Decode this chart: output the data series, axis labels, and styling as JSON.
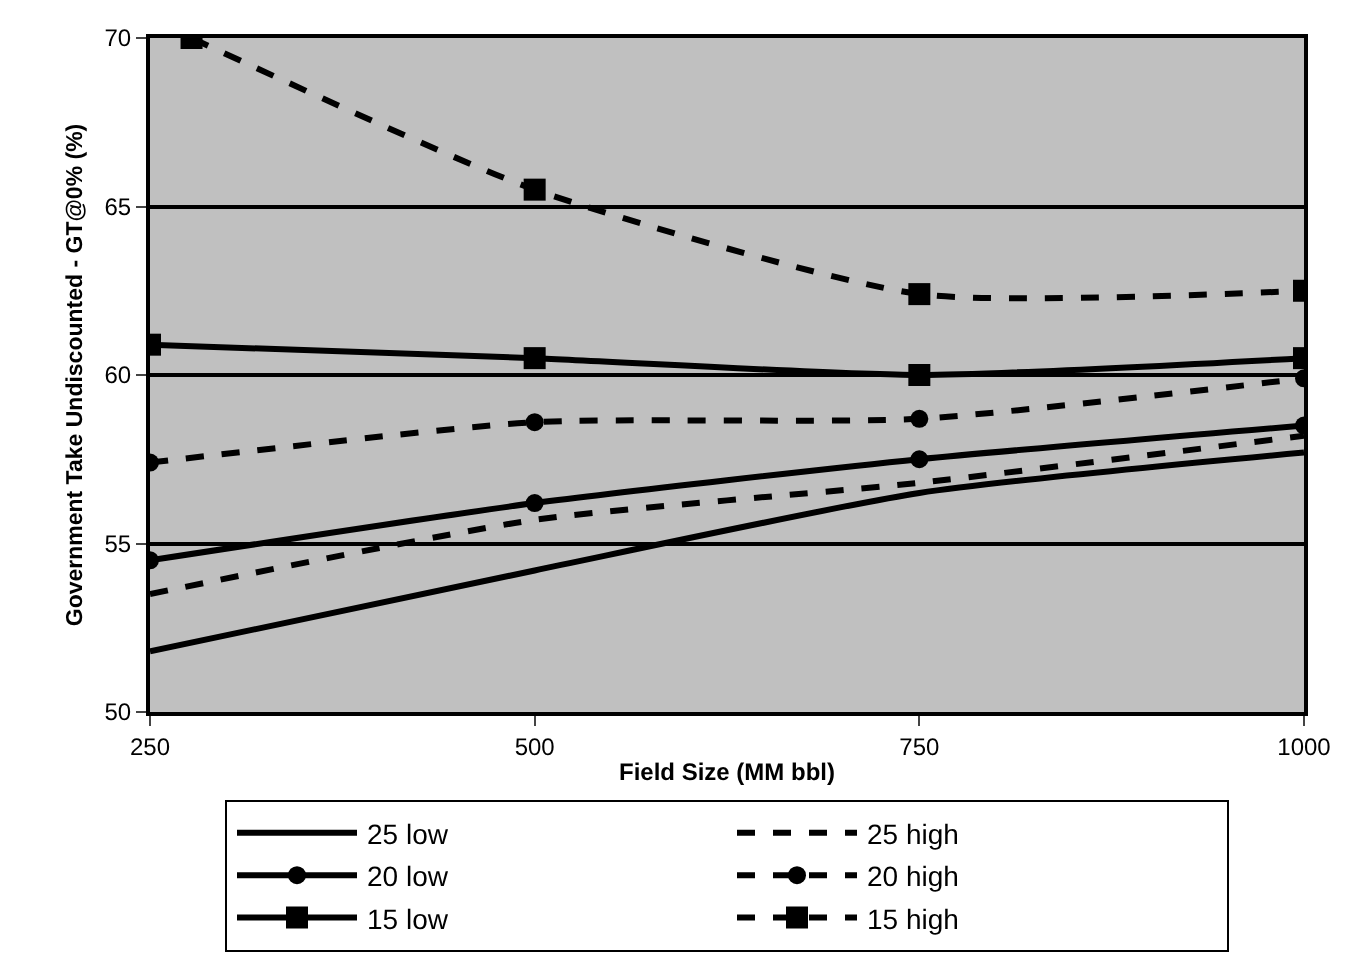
{
  "chart_data": {
    "type": "line",
    "xlabel": "Field Size (MM bbl)",
    "ylabel": "Government Take Undiscounted - GT@0% (%)",
    "x": [
      250,
      500,
      750,
      1000
    ],
    "xlim": [
      250,
      1000
    ],
    "xticks": [
      250,
      500,
      750,
      1000
    ],
    "ylim": [
      50,
      70
    ],
    "yticks": [
      50,
      55,
      60,
      65,
      70
    ],
    "grid": "y",
    "legend": "bottom",
    "series": [
      {
        "name": "25 low",
        "color": "#000000",
        "line_style": "solid",
        "marker": "none",
        "values": [
          51.8,
          54.2,
          56.5,
          57.7
        ]
      },
      {
        "name": "25 high",
        "color": "#000000",
        "line_style": "dashed",
        "marker": "none",
        "values": [
          53.5,
          55.7,
          56.8,
          58.2
        ]
      },
      {
        "name": "20 low",
        "color": "#000000",
        "line_style": "solid",
        "marker": "circle",
        "values": [
          54.5,
          56.2,
          57.5,
          58.5
        ]
      },
      {
        "name": "20 high",
        "color": "#000000",
        "line_style": "dashed",
        "marker": "circle",
        "values": [
          57.4,
          58.6,
          58.7,
          59.9
        ]
      },
      {
        "name": "15 low",
        "color": "#000000",
        "line_style": "solid",
        "marker": "square",
        "values": [
          60.9,
          60.5,
          60.0,
          60.5
        ]
      },
      {
        "name": "15 high",
        "color": "#000000",
        "line_style": "dashed",
        "marker": "square",
        "x": [
          277,
          500,
          750,
          1000
        ],
        "values": [
          70.0,
          65.5,
          62.4,
          62.5
        ]
      }
    ]
  }
}
